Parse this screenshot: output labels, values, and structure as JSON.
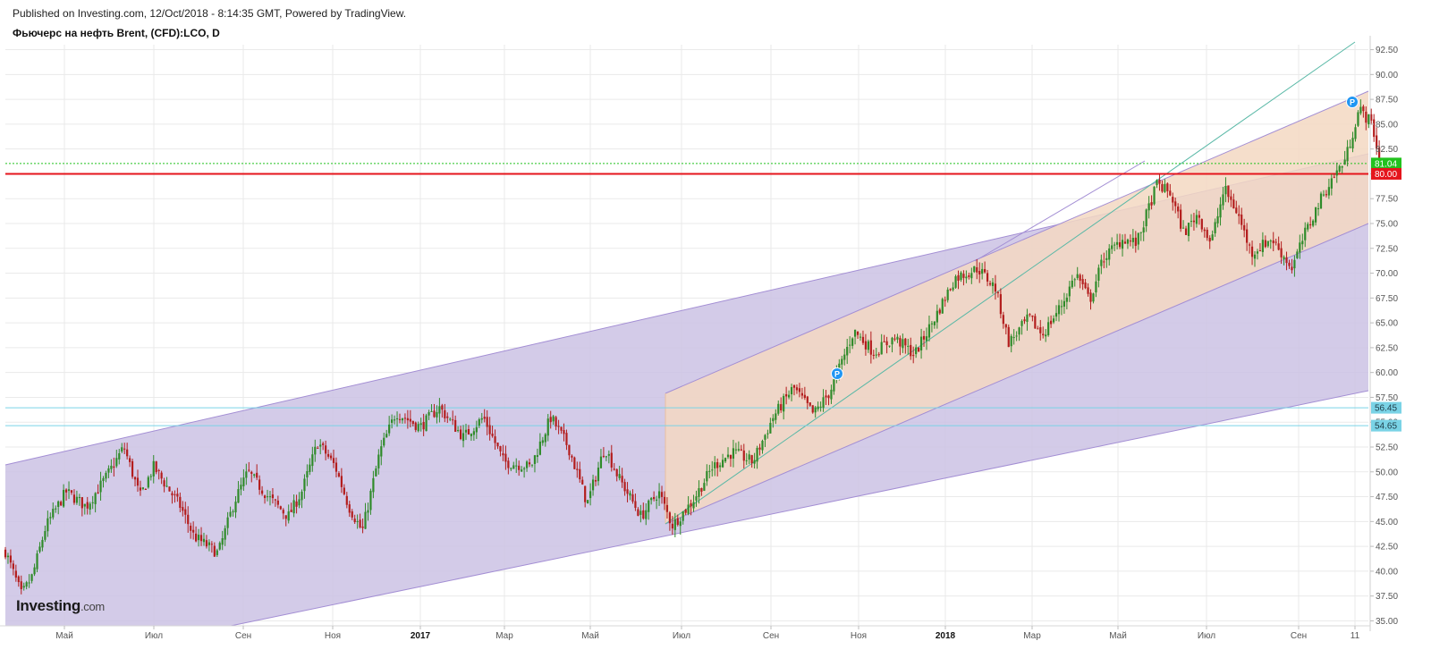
{
  "header": {
    "published": "Published on Investing.com, 12/Oct/2018 - 8:14:35 GMT, Powered by TradingView.",
    "title": "Фьючерс на нефть Brent, (CFD):LCO, D"
  },
  "logo": {
    "main": "Investing",
    "suffix": ".com"
  },
  "chart_data": {
    "type": "candlestick",
    "title": "Фьючерс на нефть Brent, (CFD):LCO, D",
    "y_axis": {
      "position": "right",
      "range": [
        34.5,
        93.0
      ],
      "ticks": [
        "35.00",
        "37.50",
        "40.00",
        "42.50",
        "45.00",
        "47.50",
        "50.00",
        "52.50",
        "55.00",
        "57.50",
        "60.00",
        "62.50",
        "65.00",
        "67.50",
        "70.00",
        "72.50",
        "75.00",
        "77.50",
        "80.00",
        "82.50",
        "85.00",
        "87.50",
        "90.00",
        "92.50"
      ]
    },
    "x_axis": {
      "ticks": [
        {
          "label": "Май",
          "bold": false
        },
        {
          "label": "Июл",
          "bold": false
        },
        {
          "label": "Сен",
          "bold": false
        },
        {
          "label": "Ноя",
          "bold": false
        },
        {
          "label": "2017",
          "bold": true
        },
        {
          "label": "Мар",
          "bold": false
        },
        {
          "label": "Май",
          "bold": false
        },
        {
          "label": "Июл",
          "bold": false
        },
        {
          "label": "Сен",
          "bold": false
        },
        {
          "label": "Ноя",
          "bold": false
        },
        {
          "label": "2018",
          "bold": true
        },
        {
          "label": "Мар",
          "bold": false
        },
        {
          "label": "Май",
          "bold": false
        },
        {
          "label": "Июл",
          "bold": false
        },
        {
          "label": "Сен",
          "bold": false
        },
        {
          "label": "11",
          "bold": false
        }
      ]
    },
    "price_path": [
      [
        0,
        42.0
      ],
      [
        0.012,
        37.6
      ],
      [
        0.02,
        39.5
      ],
      [
        0.03,
        44.5
      ],
      [
        0.045,
        48.0
      ],
      [
        0.06,
        46.5
      ],
      [
        0.075,
        49.5
      ],
      [
        0.088,
        52.5
      ],
      [
        0.1,
        47.5
      ],
      [
        0.11,
        50.5
      ],
      [
        0.13,
        46.5
      ],
      [
        0.14,
        43.5
      ],
      [
        0.158,
        41.8
      ],
      [
        0.17,
        47.0
      ],
      [
        0.18,
        50.0
      ],
      [
        0.195,
        47.5
      ],
      [
        0.21,
        45.5
      ],
      [
        0.22,
        48.0
      ],
      [
        0.232,
        53.0
      ],
      [
        0.245,
        50.5
      ],
      [
        0.255,
        46.5
      ],
      [
        0.265,
        44.0
      ],
      [
        0.278,
        52.0
      ],
      [
        0.29,
        56.0
      ],
      [
        0.308,
        54.5
      ],
      [
        0.322,
        56.5
      ],
      [
        0.34,
        53.5
      ],
      [
        0.355,
        55.5
      ],
      [
        0.37,
        51.0
      ],
      [
        0.39,
        50.5
      ],
      [
        0.405,
        55.5
      ],
      [
        0.418,
        52.5
      ],
      [
        0.432,
        46.8
      ],
      [
        0.445,
        52.5
      ],
      [
        0.455,
        49.5
      ],
      [
        0.472,
        45.5
      ],
      [
        0.485,
        48.0
      ],
      [
        0.495,
        44.6
      ],
      [
        0.51,
        47.0
      ],
      [
        0.525,
        50.5
      ],
      [
        0.54,
        52.0
      ],
      [
        0.555,
        51.0
      ],
      [
        0.57,
        55.5
      ],
      [
        0.585,
        58.5
      ],
      [
        0.6,
        55.8
      ],
      [
        0.612,
        58.0
      ],
      [
        0.63,
        64.2
      ],
      [
        0.645,
        62.0
      ],
      [
        0.66,
        63.5
      ],
      [
        0.675,
        61.8
      ],
      [
        0.69,
        65.5
      ],
      [
        0.705,
        69.5
      ],
      [
        0.722,
        70.5
      ],
      [
        0.735,
        68.5
      ],
      [
        0.745,
        63.0
      ],
      [
        0.76,
        65.5
      ],
      [
        0.77,
        63.8
      ],
      [
        0.785,
        67.0
      ],
      [
        0.795,
        70.0
      ],
      [
        0.805,
        67.2
      ],
      [
        0.815,
        71.5
      ],
      [
        0.83,
        73.5
      ],
      [
        0.84,
        73.0
      ],
      [
        0.855,
        79.0
      ],
      [
        0.865,
        78.0
      ],
      [
        0.875,
        74.0
      ],
      [
        0.885,
        76.0
      ],
      [
        0.895,
        73.0
      ],
      [
        0.905,
        78.5
      ],
      [
        0.915,
        76.0
      ],
      [
        0.925,
        72.0
      ],
      [
        0.94,
        73.5
      ],
      [
        0.955,
        70.5
      ],
      [
        0.965,
        74.0
      ],
      [
        0.975,
        77.0
      ],
      [
        0.985,
        79.5
      ],
      [
        0.995,
        81.5
      ],
      [
        1.005,
        86.5
      ],
      [
        1.015,
        85.0
      ],
      [
        1.02,
        80.9
      ]
    ],
    "levels": [
      {
        "label": "81.04",
        "value": 81.04,
        "color": "#22c21e",
        "style": "dotted"
      },
      {
        "label": "80.00",
        "value": 80.0,
        "color": "#e5151c",
        "style": "solid"
      },
      {
        "label": "56.45",
        "value": 56.45,
        "color": "#7ad3e6",
        "style": "solid"
      },
      {
        "label": "54.65",
        "value": 54.65,
        "color": "#7ad3e6",
        "style": "solid"
      }
    ],
    "colors": {
      "up": "#2f8b2a",
      "down": "#b31d1d",
      "channel_outer_fill": "#cbc2e4",
      "channel_inner_fill": "#f3d8c2",
      "channel_line": "#a38ed4",
      "trend_line": "#58b8a6",
      "grid": "#eaeaea",
      "p_badge": "#2196f3"
    },
    "grid": true,
    "legend": "none"
  }
}
